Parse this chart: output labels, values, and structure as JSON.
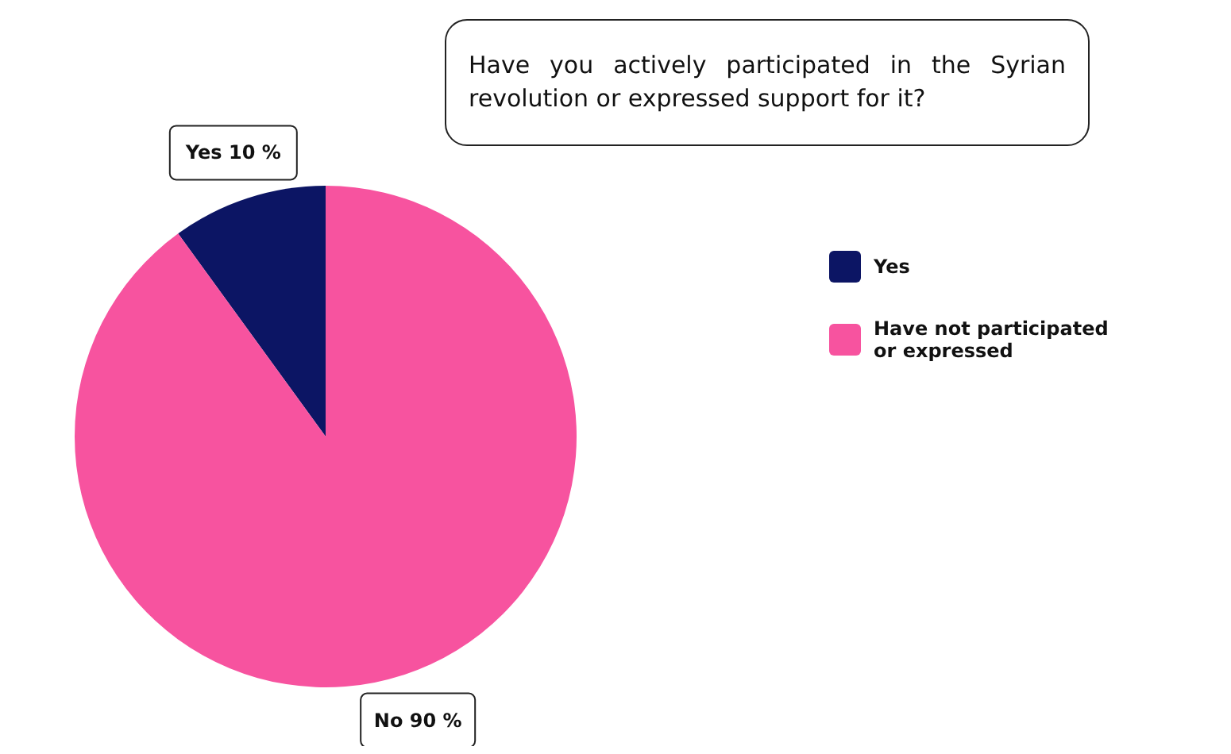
{
  "chart_data": {
    "type": "pie",
    "title": "Have you actively participated in the Syrian revolution or expressed support for it?",
    "categories": [
      "Yes",
      "Have not participated or expressed"
    ],
    "values": [
      10,
      90
    ],
    "colors": [
      "#0c1564",
      "#f7539f"
    ],
    "value_labels": [
      "Yes 10 %",
      "No 90 %"
    ],
    "legend": "right"
  }
}
